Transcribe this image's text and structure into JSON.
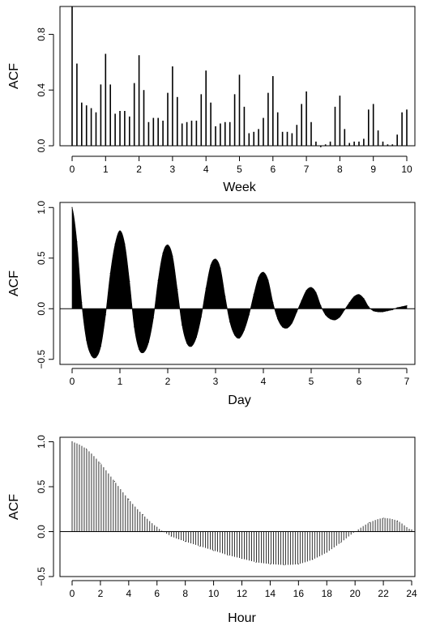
{
  "chart_data": [
    {
      "type": "bar",
      "ylabel": "ACF",
      "xlabel": "Week",
      "xlim": [
        0,
        10
      ],
      "ylim": [
        0,
        1
      ],
      "x_ticks": [
        0,
        1,
        2,
        3,
        4,
        5,
        6,
        7,
        8,
        9,
        10
      ],
      "y_ticks": [
        0.0,
        0.4,
        0.8
      ],
      "y_tick_labels": [
        "0.0",
        "0.4",
        "0.8"
      ],
      "x": [
        0,
        0.143,
        0.286,
        0.429,
        0.571,
        0.714,
        0.857,
        1.0,
        1.143,
        1.286,
        1.429,
        1.571,
        1.714,
        1.857,
        2.0,
        2.143,
        2.286,
        2.429,
        2.571,
        2.714,
        2.857,
        3.0,
        3.143,
        3.286,
        3.429,
        3.571,
        3.714,
        3.857,
        4.0,
        4.143,
        4.286,
        4.429,
        4.571,
        4.714,
        4.857,
        5.0,
        5.143,
        5.286,
        5.429,
        5.571,
        5.714,
        5.857,
        6.0,
        6.143,
        6.286,
        6.429,
        6.571,
        6.714,
        6.857,
        7.0,
        7.143,
        7.286,
        7.429,
        7.571,
        7.714,
        7.857,
        8.0,
        8.143,
        8.286,
        8.429,
        8.571,
        8.714,
        8.857,
        9.0,
        9.143,
        9.286,
        9.429,
        9.571,
        9.714,
        9.857,
        10.0
      ],
      "values": [
        1.0,
        0.59,
        0.31,
        0.29,
        0.27,
        0.24,
        0.44,
        0.66,
        0.44,
        0.23,
        0.25,
        0.25,
        0.21,
        0.45,
        0.65,
        0.4,
        0.17,
        0.2,
        0.2,
        0.18,
        0.38,
        0.57,
        0.35,
        0.16,
        0.17,
        0.18,
        0.18,
        0.37,
        0.54,
        0.31,
        0.14,
        0.16,
        0.17,
        0.17,
        0.37,
        0.51,
        0.28,
        0.09,
        0.1,
        0.12,
        0.2,
        0.38,
        0.5,
        0.24,
        0.1,
        0.1,
        0.09,
        0.15,
        0.3,
        0.39,
        0.17,
        0.03,
        -0.01,
        0.01,
        0.03,
        0.28,
        0.36,
        0.12,
        0.02,
        0.03,
        0.03,
        0.05,
        0.26,
        0.3,
        0.11,
        0.03,
        0.01,
        0.01,
        0.08,
        0.24,
        0.26
      ]
    },
    {
      "type": "area",
      "ylabel": "ACF",
      "xlabel": "Day",
      "xlim": [
        0,
        7
      ],
      "ylim": [
        -0.55,
        1.05
      ],
      "x_ticks": [
        0,
        1,
        2,
        3,
        4,
        5,
        6,
        7
      ],
      "y_ticks": [
        -0.5,
        0.0,
        0.5,
        1.0
      ],
      "y_tick_labels": [
        "−0.5",
        "0.0",
        "0.5",
        "1.0"
      ],
      "x": [
        0,
        0.1,
        0.2,
        0.3,
        0.4,
        0.5,
        0.6,
        0.7,
        0.8,
        0.9,
        1.0,
        1.1,
        1.2,
        1.3,
        1.4,
        1.5,
        1.6,
        1.7,
        1.8,
        1.9,
        2.0,
        2.1,
        2.2,
        2.3,
        2.4,
        2.5,
        2.6,
        2.7,
        2.8,
        2.9,
        3.0,
        3.1,
        3.2,
        3.3,
        3.4,
        3.5,
        3.6,
        3.7,
        3.8,
        3.9,
        4.0,
        4.1,
        4.2,
        4.3,
        4.4,
        4.5,
        4.6,
        4.7,
        4.8,
        4.9,
        5.0,
        5.1,
        5.2,
        5.3,
        5.4,
        5.5,
        5.6,
        5.7,
        5.8,
        5.9,
        6.0,
        6.1,
        6.2,
        6.3,
        6.4,
        6.5,
        6.6,
        6.7,
        6.8,
        6.9,
        7.0
      ],
      "values": [
        1.0,
        0.66,
        0.06,
        -0.31,
        -0.46,
        -0.48,
        -0.37,
        -0.06,
        0.35,
        0.64,
        0.77,
        0.64,
        0.27,
        -0.18,
        -0.4,
        -0.43,
        -0.33,
        -0.09,
        0.28,
        0.55,
        0.63,
        0.52,
        0.19,
        -0.16,
        -0.34,
        -0.37,
        -0.28,
        -0.08,
        0.2,
        0.43,
        0.49,
        0.4,
        0.12,
        -0.13,
        -0.26,
        -0.29,
        -0.21,
        -0.06,
        0.14,
        0.31,
        0.36,
        0.28,
        0.06,
        -0.1,
        -0.18,
        -0.19,
        -0.14,
        -0.03,
        0.08,
        0.18,
        0.21,
        0.16,
        0.03,
        -0.06,
        -0.1,
        -0.11,
        -0.08,
        -0.01,
        0.06,
        0.12,
        0.14,
        0.1,
        0.02,
        -0.02,
        -0.03,
        -0.03,
        -0.02,
        -0.01,
        0.01,
        0.02,
        0.03
      ]
    },
    {
      "type": "bar",
      "ylabel": "ACF",
      "xlabel": "Hour",
      "xlim": [
        0,
        24
      ],
      "ylim": [
        -0.5,
        1.05
      ],
      "x_ticks": [
        0,
        2,
        4,
        6,
        8,
        10,
        12,
        14,
        16,
        18,
        20,
        22,
        24
      ],
      "y_ticks": [
        -0.5,
        0.0,
        0.5,
        1.0
      ],
      "y_tick_labels": [
        "−0.5",
        "0.0",
        "0.5",
        "1.0"
      ],
      "x": [
        0,
        1,
        2,
        3,
        4,
        5,
        6,
        7,
        8,
        9,
        10,
        11,
        12,
        13,
        14,
        15,
        16,
        17,
        18,
        19,
        20,
        21,
        22,
        23,
        24
      ],
      "values": [
        1.0,
        0.92,
        0.76,
        0.56,
        0.36,
        0.19,
        0.05,
        -0.05,
        -0.11,
        -0.16,
        -0.21,
        -0.26,
        -0.3,
        -0.34,
        -0.36,
        -0.37,
        -0.36,
        -0.31,
        -0.23,
        -0.12,
        0.0,
        0.1,
        0.15,
        0.12,
        0.02
      ]
    }
  ]
}
